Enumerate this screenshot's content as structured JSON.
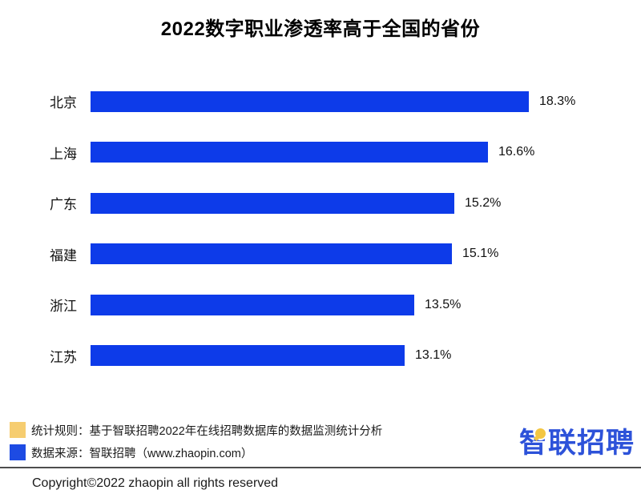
{
  "title": "2022数字职业渗透率高于全国的省份",
  "chart_data": {
    "type": "bar",
    "orientation": "horizontal",
    "title": "2022数字职业渗透率高于全国的省份",
    "categories": [
      "北京",
      "上海",
      "广东",
      "福建",
      "浙江",
      "江苏"
    ],
    "values": [
      18.3,
      16.6,
      15.2,
      15.1,
      13.5,
      13.1
    ],
    "value_labels": [
      "18.3%",
      "16.6%",
      "15.2%",
      "15.1%",
      "13.5%",
      "13.1%"
    ],
    "xlabel": "",
    "ylabel": "",
    "xlim": [
      0,
      20
    ],
    "grid": false,
    "legend_position": "bottom-left",
    "unit": "%"
  },
  "legend": {
    "items": [
      {
        "color": "#f6cd70",
        "label": "统计规则：基于智联招聘2022年在线招聘数据库的数据监测统计分析"
      },
      {
        "color": "#1d4be3",
        "label": "数据来源：智联招聘（www.zhaopin.com）"
      }
    ]
  },
  "footer": {
    "copyright": "Copyright©2022 zhaopin all rights reserved",
    "logo_text": "智联招聘"
  },
  "colors": {
    "bar_blue": "#0d3be9",
    "legend_yellow": "#f6cd70",
    "legend_blue": "#1d4be3",
    "logo_blue": "#2d52d9",
    "logo_yellow": "#f3c642",
    "divider_gray": "#4d4d4d",
    "text_black": "#111111"
  }
}
